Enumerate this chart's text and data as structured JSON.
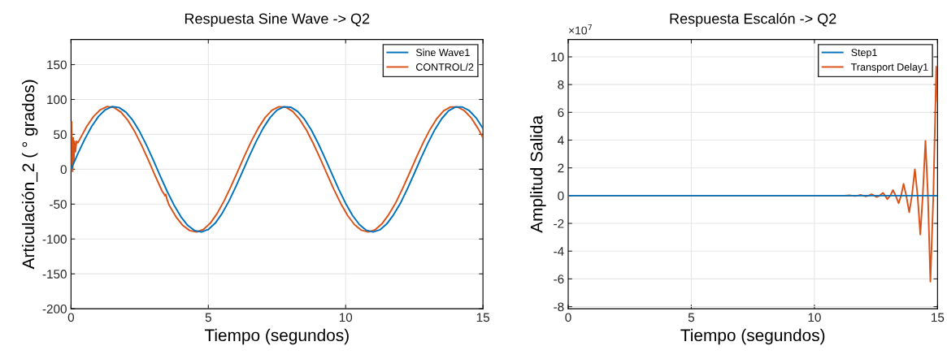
{
  "chart_data": [
    {
      "type": "line",
      "title": "Respuesta Sine Wave -> Q2",
      "xlabel": "Tiempo (segundos)",
      "ylabel": "Articulación_2 ( ° grados)",
      "xlim": [
        0,
        15
      ],
      "xticks": [
        0,
        5,
        10,
        15
      ],
      "ylim": [
        -200,
        186
      ],
      "yticks": [
        -200,
        -150,
        -100,
        -50,
        0,
        50,
        100,
        150
      ],
      "grid": true,
      "legend": "top right",
      "line_style": "solid",
      "marker": "none",
      "series": [
        {
          "name": "Sine Wave1",
          "color": "#0072bd",
          "x": [
            0,
            0.25,
            0.5,
            0.75,
            1,
            1.25,
            1.5,
            1.75,
            2,
            2.25,
            2.5,
            2.75,
            3,
            3.25,
            3.5,
            3.75,
            4,
            4.25,
            4.5,
            4.75,
            5,
            5.25,
            5.5,
            5.75,
            6,
            6.25,
            6.5,
            6.75,
            7,
            7.25,
            7.5,
            7.75,
            8,
            8.25,
            8.5,
            8.75,
            9,
            9.25,
            9.5,
            9.75,
            10,
            10.25,
            10.5,
            10.75,
            11,
            11.25,
            11.5,
            11.75,
            12,
            12.25,
            12.5,
            12.75,
            13,
            13.25,
            13.5,
            13.75,
            14,
            14.25,
            14.5,
            14.75,
            15
          ],
          "values": [
            0,
            22.3,
            43.1,
            61.3,
            75.7,
            85.4,
            89.8,
            88.5,
            81.8,
            70.0,
            53.9,
            34.4,
            12.7,
            -9.8,
            -31.6,
            -51.3,
            -68.1,
            -80.6,
            -87.9,
            -89.9,
            -86.3,
            -77.4,
            -63.5,
            -45.7,
            -25.1,
            -3.0,
            19.4,
            40.4,
            59.1,
            74.2,
            84.7,
            89.6,
            89.0,
            82.9,
            71.8,
            56.3,
            37.1,
            15.6,
            -6.8,
            -28.8,
            -49.0,
            -66.2,
            -79.3,
            -87.4,
            -90.0,
            -86.8,
            -78.3,
            -64.9,
            -48.3,
            -28.0,
            -6.0,
            16.5,
            37.8,
            57.0,
            72.6,
            83.8,
            89.3,
            89.2,
            84.0,
            73.7,
            58.5
          ]
        },
        {
          "name": "CONTROL/2",
          "color": "#d95319",
          "x": [
            0,
            0.02,
            0.04,
            0.06,
            0.08,
            0.1,
            0.13,
            0.16,
            0.2,
            0.25,
            0.32,
            0.57,
            0.82,
            1.07,
            1.32,
            1.57,
            1.82,
            2.07,
            2.32,
            2.57,
            2.82,
            3.07,
            3.32,
            3.38,
            3.42,
            3.45,
            3.5,
            3.57,
            3.82,
            4.07,
            4.32,
            4.57,
            4.82,
            5.07,
            5.32,
            5.57,
            5.82,
            6.07,
            6.32,
            6.57,
            6.82,
            7.07,
            7.32,
            7.57,
            7.82,
            8.07,
            8.32,
            8.57,
            8.82,
            9.07,
            9.32,
            9.57,
            9.82,
            10.07,
            10.32,
            10.57,
            10.82,
            11.07,
            11.32,
            11.57,
            11.82,
            12.07,
            12.32,
            12.57,
            12.82,
            13.07,
            13.32,
            13.57,
            13.82,
            14.07,
            14.32,
            14.57,
            14.82,
            15
          ],
          "values": [
            0,
            68,
            20,
            -3,
            45,
            10,
            40,
            25,
            40,
            38,
            43.1,
            61.3,
            75.7,
            85.4,
            89.8,
            88.5,
            81.8,
            70.0,
            53.9,
            34.4,
            12.7,
            -9.8,
            -31.6,
            -35,
            -38,
            -36,
            -44,
            -51.3,
            -68.1,
            -80.6,
            -87.9,
            -89.9,
            -86.3,
            -77.4,
            -63.5,
            -45.7,
            -25.1,
            -3.0,
            19.4,
            40.4,
            59.1,
            74.2,
            84.7,
            89.6,
            89.0,
            82.9,
            71.8,
            56.3,
            37.1,
            15.6,
            -6.8,
            -28.8,
            -49.0,
            -66.2,
            -79.3,
            -87.4,
            -90.0,
            -86.8,
            -78.3,
            -64.9,
            -48.3,
            -28.0,
            -6.0,
            16.5,
            37.8,
            57.0,
            72.6,
            83.8,
            89.3,
            89.2,
            84.0,
            73.7,
            58.5,
            45
          ]
        }
      ]
    },
    {
      "type": "line",
      "title": "Respuesta Escalón -> Q2",
      "xlabel": "Tiempo (segundos)",
      "ylabel": "Amplitud Salida",
      "annotations": [
        "×10$^{7}$"
      ],
      "xlim": [
        0,
        15
      ],
      "xticks": [
        0,
        5,
        10,
        15
      ],
      "ylim": [
        -8.15,
        11.25
      ],
      "yticks": [
        -8,
        -6,
        -4,
        -2,
        0,
        2,
        4,
        6,
        8,
        10
      ],
      "grid": true,
      "legend": "top right",
      "line_style": "solid",
      "marker": "none",
      "series": [
        {
          "name": "Step1",
          "color": "#0072bd",
          "x": [
            0,
            15
          ],
          "values": [
            0,
            0
          ]
        },
        {
          "name": "Transport Delay1",
          "color": "#d95319",
          "x": [
            0,
            11.2,
            11.43,
            11.53,
            11.64,
            11.76,
            11.87,
            11.98,
            12.09,
            12.2,
            12.32,
            12.43,
            12.53,
            12.65,
            12.78,
            12.87,
            12.96,
            13.08,
            13.19,
            13.3,
            13.42,
            13.52,
            13.62,
            13.73,
            13.85,
            13.96,
            14.08,
            14.19,
            14.3,
            14.4,
            14.51,
            14.61,
            14.71,
            14.83,
            14.95,
            15
          ],
          "values": [
            0,
            0,
            0.02,
            0,
            -0.03,
            0,
            0.05,
            0,
            -0.05,
            0,
            0.1,
            0,
            -0.1,
            0,
            0.2,
            0,
            -0.25,
            0,
            0.4,
            0,
            -0.55,
            0,
            0.85,
            0,
            -1.2,
            0,
            1.9,
            0,
            -2.8,
            0,
            3.95,
            0,
            -6.2,
            0,
            9.3,
            6.8
          ]
        }
      ]
    }
  ]
}
